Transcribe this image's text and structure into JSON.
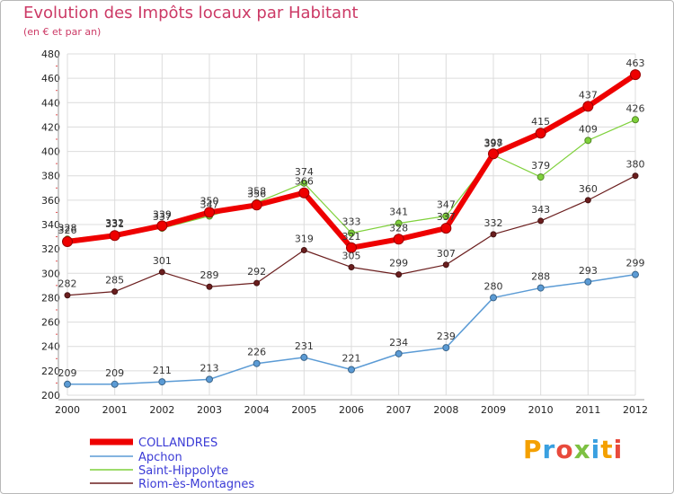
{
  "title": "Evolution des Impôts locaux par Habitant",
  "subtitle": "(en € et par an)",
  "logo": "Proxiti",
  "chart_data": {
    "type": "line",
    "x": [
      2000,
      2001,
      2002,
      2003,
      2004,
      2005,
      2006,
      2007,
      2008,
      2009,
      2010,
      2011,
      2012
    ],
    "ylim": [
      200,
      480
    ],
    "yticks": [
      200,
      220,
      240,
      260,
      280,
      300,
      320,
      340,
      360,
      380,
      400,
      420,
      440,
      460,
      480
    ],
    "grid": true,
    "legend_position": "bottom-left",
    "series": [
      {
        "name": "COLLANDRES",
        "color": "#ee0000",
        "values": [
          326,
          331,
          339,
          350,
          356,
          366,
          321,
          328,
          337,
          398,
          415,
          437,
          463
        ]
      },
      {
        "name": "Apchon",
        "color": "#5b9bd5",
        "values": [
          209,
          209,
          211,
          213,
          226,
          231,
          221,
          234,
          239,
          280,
          288,
          293,
          299
        ]
      },
      {
        "name": "Saint-Hippolyte",
        "color": "#7fd13b",
        "values": [
          328,
          332,
          337,
          347,
          358,
          374,
          333,
          341,
          347,
          397,
          379,
          409,
          426
        ]
      },
      {
        "name": "Riom-ès-Montagnes",
        "color": "#6b1e1e",
        "values": [
          282,
          285,
          301,
          289,
          292,
          319,
          305,
          299,
          307,
          332,
          343,
          360,
          380
        ]
      }
    ]
  }
}
